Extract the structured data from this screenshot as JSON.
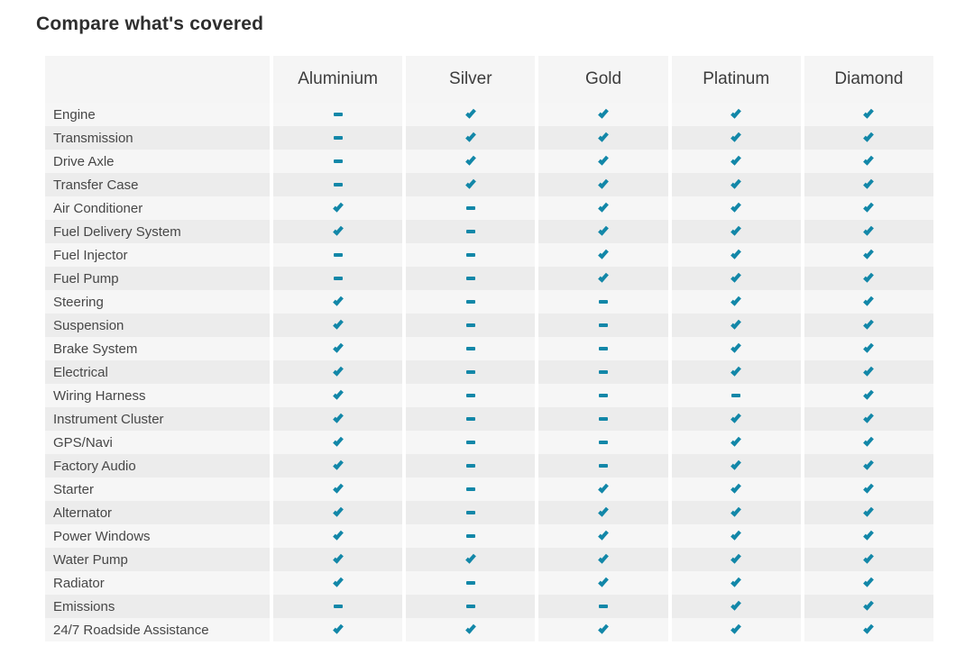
{
  "page": {
    "title": "Compare what's covered"
  },
  "colors": {
    "accent": "#1287a8"
  },
  "table": {
    "columns": [
      "Aluminium",
      "Silver",
      "Gold",
      "Platinum",
      "Diamond"
    ],
    "rows": [
      {
        "label": "Engine",
        "values": [
          "dash",
          "check",
          "check",
          "check",
          "check"
        ]
      },
      {
        "label": "Transmission",
        "values": [
          "dash",
          "check",
          "check",
          "check",
          "check"
        ]
      },
      {
        "label": "Drive Axle",
        "values": [
          "dash",
          "check",
          "check",
          "check",
          "check"
        ]
      },
      {
        "label": "Transfer Case",
        "values": [
          "dash",
          "check",
          "check",
          "check",
          "check"
        ]
      },
      {
        "label": "Air Conditioner",
        "values": [
          "check",
          "dash",
          "check",
          "check",
          "check"
        ]
      },
      {
        "label": "Fuel Delivery System",
        "values": [
          "check",
          "dash",
          "check",
          "check",
          "check"
        ]
      },
      {
        "label": "Fuel Injector",
        "values": [
          "dash",
          "dash",
          "check",
          "check",
          "check"
        ]
      },
      {
        "label": "Fuel Pump",
        "values": [
          "dash",
          "dash",
          "check",
          "check",
          "check"
        ]
      },
      {
        "label": "Steering",
        "values": [
          "check",
          "dash",
          "dash",
          "check",
          "check"
        ]
      },
      {
        "label": "Suspension",
        "values": [
          "check",
          "dash",
          "dash",
          "check",
          "check"
        ]
      },
      {
        "label": "Brake System",
        "values": [
          "check",
          "dash",
          "dash",
          "check",
          "check"
        ]
      },
      {
        "label": "Electrical",
        "values": [
          "check",
          "dash",
          "dash",
          "check",
          "check"
        ]
      },
      {
        "label": "Wiring Harness",
        "values": [
          "check",
          "dash",
          "dash",
          "dash",
          "check"
        ]
      },
      {
        "label": "Instrument Cluster",
        "values": [
          "check",
          "dash",
          "dash",
          "check",
          "check"
        ]
      },
      {
        "label": "GPS/Navi",
        "values": [
          "check",
          "dash",
          "dash",
          "check",
          "check"
        ]
      },
      {
        "label": "Factory Audio",
        "values": [
          "check",
          "dash",
          "dash",
          "check",
          "check"
        ]
      },
      {
        "label": "Starter",
        "values": [
          "check",
          "dash",
          "check",
          "check",
          "check"
        ]
      },
      {
        "label": "Alternator",
        "values": [
          "check",
          "dash",
          "check",
          "check",
          "check"
        ]
      },
      {
        "label": "Power Windows",
        "values": [
          "check",
          "dash",
          "check",
          "check",
          "check"
        ]
      },
      {
        "label": "Water Pump",
        "values": [
          "check",
          "check",
          "check",
          "check",
          "check"
        ]
      },
      {
        "label": "Radiator",
        "values": [
          "check",
          "dash",
          "check",
          "check",
          "check"
        ]
      },
      {
        "label": "Emissions",
        "values": [
          "dash",
          "dash",
          "dash",
          "check",
          "check"
        ]
      },
      {
        "label": "24/7 Roadside Assistance",
        "values": [
          "check",
          "check",
          "check",
          "check",
          "check"
        ]
      }
    ]
  }
}
